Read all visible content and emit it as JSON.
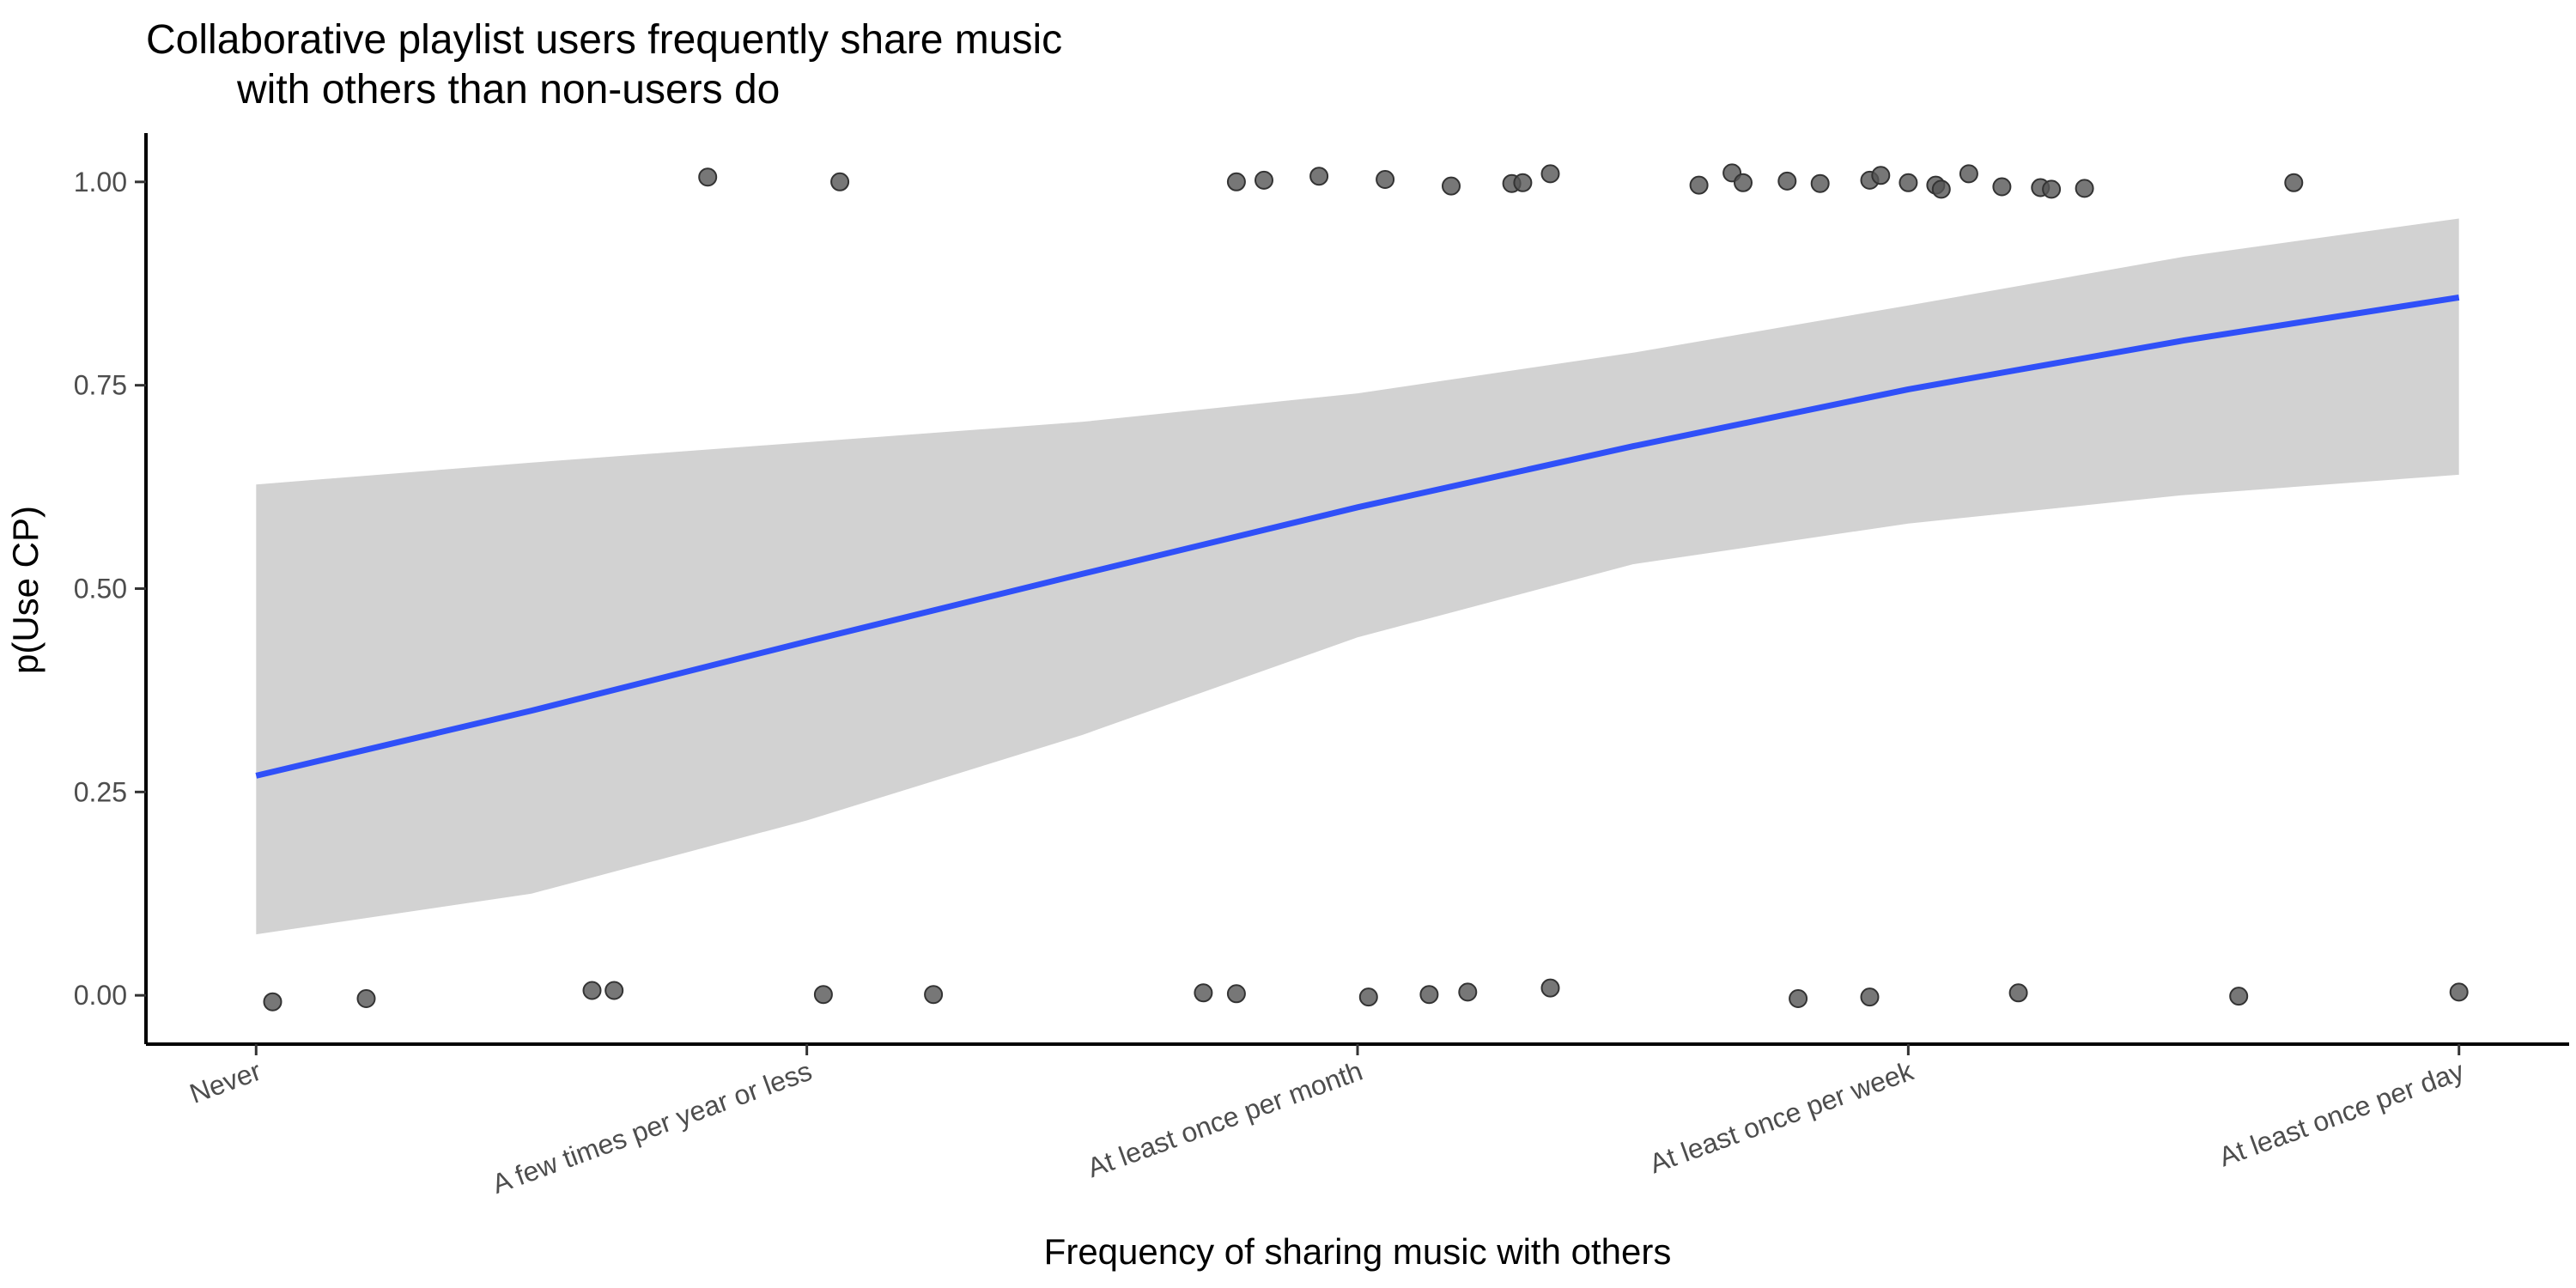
{
  "chart_data": {
    "type": "scatter",
    "title_lines": [
      "Collaborative playlist users frequently share music",
      "with others than non-users do"
    ],
    "xlabel": "Frequency of sharing music with others",
    "ylabel": "p(Use CP)",
    "categories": [
      "Never",
      "A few times per year or less",
      "At least once per month",
      "At least once per week",
      "At least once per day"
    ],
    "x_domain": [
      0.8,
      5.2
    ],
    "ylim": [
      -0.06,
      1.06
    ],
    "y_ticks": [
      0.0,
      0.25,
      0.5,
      0.75,
      1.0
    ],
    "y_tick_labels": [
      "0.00",
      "0.25",
      "0.50",
      "0.75",
      "1.00"
    ],
    "grid": false,
    "legend": "none",
    "colors": {
      "points": "#555555",
      "point_stroke": "#333333",
      "fit_line": "#3050F8",
      "ribbon": "#D2D2D2"
    },
    "points": [
      {
        "x": 1.03,
        "y": -0.008
      },
      {
        "x": 1.2,
        "y": -0.004
      },
      {
        "x": 1.61,
        "y": 0.006
      },
      {
        "x": 1.65,
        "y": 0.006
      },
      {
        "x": 2.03,
        "y": 0.001
      },
      {
        "x": 2.23,
        "y": 0.001
      },
      {
        "x": 2.72,
        "y": 0.003
      },
      {
        "x": 2.78,
        "y": 0.002
      },
      {
        "x": 3.02,
        "y": -0.002
      },
      {
        "x": 3.13,
        "y": 0.001
      },
      {
        "x": 3.2,
        "y": 0.004
      },
      {
        "x": 3.35,
        "y": 0.009
      },
      {
        "x": 3.8,
        "y": -0.004
      },
      {
        "x": 3.93,
        "y": -0.002
      },
      {
        "x": 4.2,
        "y": 0.003
      },
      {
        "x": 4.6,
        "y": -0.001
      },
      {
        "x": 5.0,
        "y": 0.004
      },
      {
        "x": 1.82,
        "y": 1.006
      },
      {
        "x": 2.06,
        "y": 1.0
      },
      {
        "x": 2.78,
        "y": 1.0
      },
      {
        "x": 2.83,
        "y": 1.002
      },
      {
        "x": 2.93,
        "y": 1.007
      },
      {
        "x": 3.05,
        "y": 1.003
      },
      {
        "x": 3.17,
        "y": 0.995
      },
      {
        "x": 3.28,
        "y": 0.998
      },
      {
        "x": 3.3,
        "y": 0.999
      },
      {
        "x": 3.35,
        "y": 1.01
      },
      {
        "x": 3.62,
        "y": 0.996
      },
      {
        "x": 3.68,
        "y": 1.011
      },
      {
        "x": 3.7,
        "y": 0.999
      },
      {
        "x": 3.78,
        "y": 1.001
      },
      {
        "x": 3.84,
        "y": 0.998
      },
      {
        "x": 3.93,
        "y": 1.002
      },
      {
        "x": 3.95,
        "y": 1.008
      },
      {
        "x": 4.0,
        "y": 0.999
      },
      {
        "x": 4.05,
        "y": 0.996
      },
      {
        "x": 4.06,
        "y": 0.991
      },
      {
        "x": 4.11,
        "y": 1.01
      },
      {
        "x": 4.17,
        "y": 0.994
      },
      {
        "x": 4.24,
        "y": 0.993
      },
      {
        "x": 4.26,
        "y": 0.991
      },
      {
        "x": 4.32,
        "y": 0.992
      },
      {
        "x": 4.7,
        "y": 0.999
      }
    ],
    "fit": {
      "x": [
        1.0,
        1.5,
        2.0,
        2.5,
        3.0,
        3.5,
        4.0,
        4.5,
        5.0
      ],
      "y": [
        0.27,
        0.35,
        0.435,
        0.518,
        0.6,
        0.675,
        0.745,
        0.805,
        0.858
      ],
      "lower": [
        0.075,
        0.125,
        0.215,
        0.32,
        0.44,
        0.53,
        0.58,
        0.615,
        0.64
      ],
      "upper": [
        0.628,
        0.655,
        0.68,
        0.705,
        0.74,
        0.79,
        0.848,
        0.908,
        0.955
      ]
    }
  }
}
